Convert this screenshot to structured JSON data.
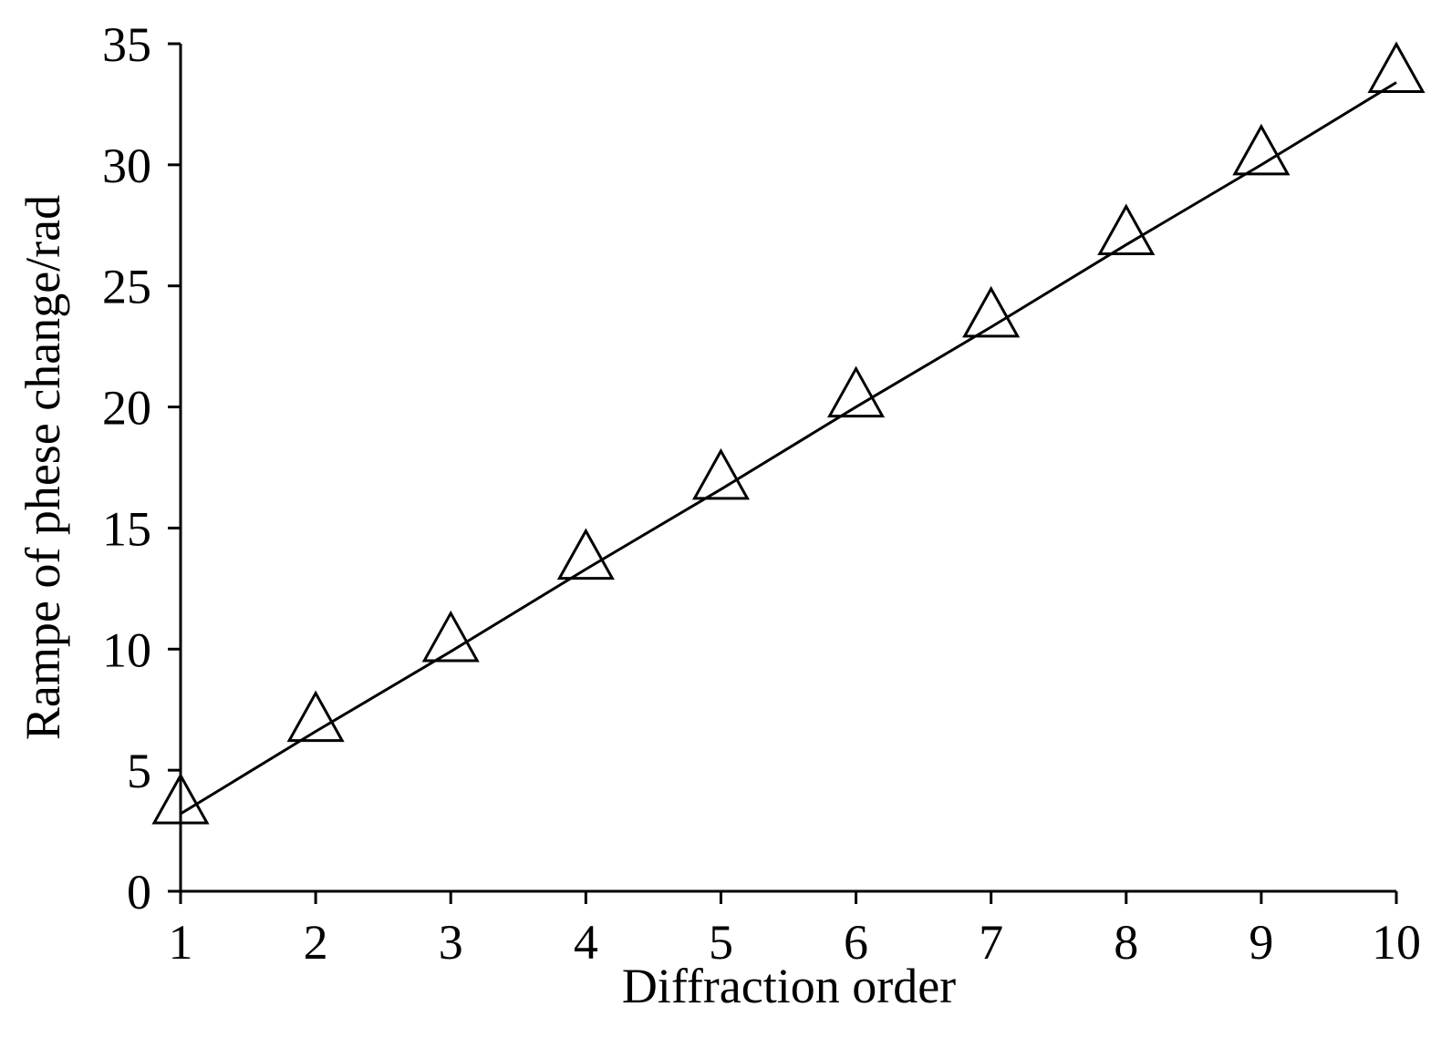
{
  "chart_data": {
    "type": "line",
    "x_label": "Diffraction order",
    "y_label": "Rampe of phese change/rad",
    "x": [
      1,
      2,
      3,
      4,
      5,
      6,
      7,
      8,
      9,
      10
    ],
    "series": [
      {
        "color": "#000000",
        "marker": "triangle",
        "values": [
          3.2,
          6.6,
          9.9,
          13.3,
          16.6,
          20.0,
          23.3,
          26.7,
          30.0,
          33.4
        ]
      }
    ],
    "xlim": [
      1,
      10
    ],
    "xticks": [
      1,
      2,
      3,
      4,
      5,
      6,
      7,
      8,
      9,
      10
    ],
    "ylim": [
      0,
      35
    ],
    "yticks": [
      0,
      5,
      10,
      15,
      20,
      25,
      30,
      35
    ]
  }
}
